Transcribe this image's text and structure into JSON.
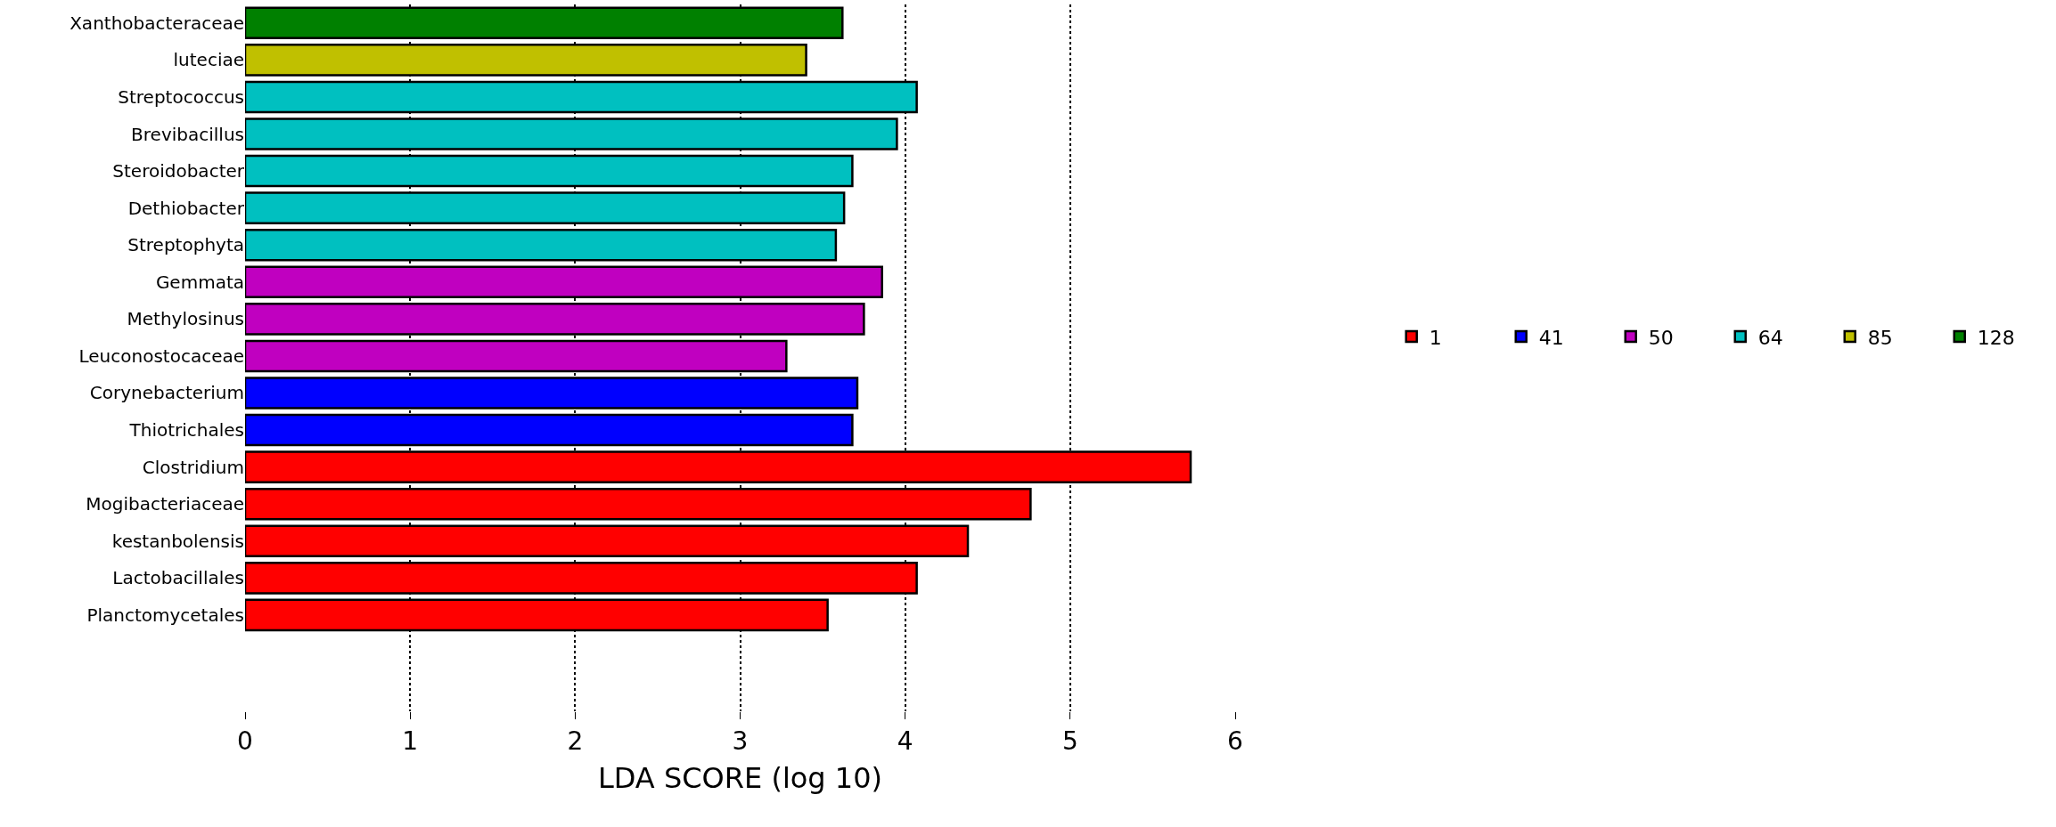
{
  "chart_data": {
    "type": "bar",
    "orientation": "horizontal",
    "xlabel": "LDA SCORE (log 10)",
    "categories": [
      "Xanthobacteraceae",
      "luteciae",
      "Streptococcus",
      "Brevibacillus",
      "Steroidobacter",
      "Dethiobacter",
      "Streptophyta",
      "Gemmata",
      "Methylosinus",
      "Leuconostocaceae",
      "Corynebacterium",
      "Thiotrichales",
      "Clostridium",
      "Mogibacteriaceae",
      "kestanbolensis",
      "Lactobacillales",
      "Planctomycetales"
    ],
    "series": [
      {
        "name": "1",
        "color": "#ff0000",
        "values": [
          null,
          null,
          null,
          null,
          null,
          null,
          null,
          null,
          null,
          null,
          null,
          null,
          5.73,
          4.76,
          4.38,
          4.07,
          3.53
        ]
      },
      {
        "name": "41",
        "color": "#0000ff",
        "values": [
          null,
          null,
          null,
          null,
          null,
          null,
          null,
          null,
          null,
          null,
          3.71,
          3.68,
          null,
          null,
          null,
          null,
          null
        ]
      },
      {
        "name": "50",
        "color": "#c000c0",
        "values": [
          null,
          null,
          null,
          null,
          null,
          null,
          null,
          3.86,
          3.75,
          3.28,
          null,
          null,
          null,
          null,
          null,
          null,
          null
        ]
      },
      {
        "name": "64",
        "color": "#00c0c0",
        "values": [
          null,
          null,
          4.07,
          3.95,
          3.68,
          3.63,
          3.58,
          null,
          null,
          null,
          null,
          null,
          null,
          null,
          null,
          null,
          null
        ]
      },
      {
        "name": "85",
        "color": "#c0c000",
        "values": [
          null,
          3.4,
          null,
          null,
          null,
          null,
          null,
          null,
          null,
          null,
          null,
          null,
          null,
          null,
          null,
          null,
          null
        ]
      },
      {
        "name": "128",
        "color": "#008000",
        "values": [
          3.62,
          null,
          null,
          null,
          null,
          null,
          null,
          null,
          null,
          null,
          null,
          null,
          null,
          null,
          null,
          null,
          null
        ]
      }
    ],
    "xlim": [
      0,
      6
    ],
    "xticks": [
      0,
      1,
      2,
      3,
      4,
      5,
      6
    ],
    "grid": "x",
    "legend": "right"
  }
}
